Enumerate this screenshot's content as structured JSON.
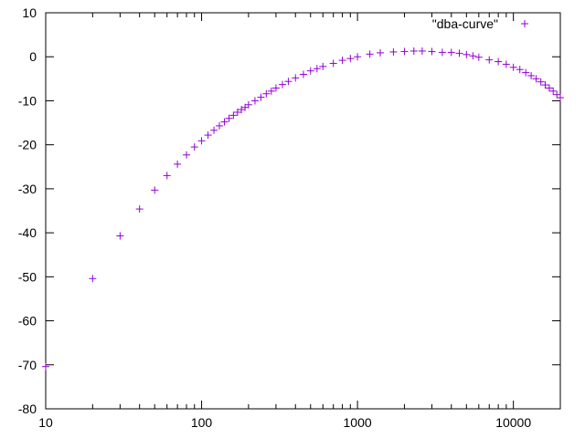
{
  "chart_data": {
    "type": "scatter",
    "title": "",
    "xlabel": "",
    "ylabel": "",
    "x_scale": "log",
    "xlim": [
      10,
      20000
    ],
    "ylim": [
      -80,
      10
    ],
    "x_ticks": [
      {
        "value": 10,
        "label": "10"
      },
      {
        "value": 100,
        "label": "100"
      },
      {
        "value": 1000,
        "label": "1000"
      },
      {
        "value": 10000,
        "label": "10000"
      }
    ],
    "y_ticks": [
      {
        "value": 10,
        "label": "10"
      },
      {
        "value": 0,
        "label": "0"
      },
      {
        "value": -10,
        "label": "-10"
      },
      {
        "value": -20,
        "label": "-20"
      },
      {
        "value": -30,
        "label": "-30"
      },
      {
        "value": -40,
        "label": "-40"
      },
      {
        "value": -50,
        "label": "-50"
      },
      {
        "value": -60,
        "label": "-60"
      },
      {
        "value": -70,
        "label": "-70"
      },
      {
        "value": -80,
        "label": "-80"
      }
    ],
    "grid": false,
    "legend_position": "top-right",
    "series": [
      {
        "name": "\"dba-curve\"",
        "color": "#9400d3",
        "marker": "plus",
        "x": [
          10,
          20,
          30,
          40,
          50,
          60,
          70,
          80,
          90,
          100,
          110,
          120,
          130,
          140,
          150,
          160,
          170,
          180,
          190,
          200,
          220,
          240,
          260,
          280,
          300,
          330,
          360,
          400,
          450,
          500,
          550,
          600,
          700,
          800,
          900,
          1000,
          1200,
          1400,
          1700,
          2000,
          2300,
          2600,
          3000,
          3500,
          4000,
          4500,
          5000,
          5500,
          6000,
          7000,
          8000,
          9000,
          10000,
          11000,
          12000,
          13000,
          14000,
          15000,
          16000,
          17000,
          18000,
          19000,
          20000
        ],
        "y": [
          -70.4,
          -50.4,
          -40.7,
          -34.6,
          -30.3,
          -27.0,
          -24.4,
          -22.3,
          -20.5,
          -19.1,
          -17.8,
          -16.7,
          -15.7,
          -14.8,
          -14.0,
          -13.3,
          -12.6,
          -12.0,
          -11.5,
          -10.9,
          -10.0,
          -9.2,
          -8.4,
          -7.8,
          -7.1,
          -6.3,
          -5.6,
          -4.8,
          -4.0,
          -3.2,
          -2.7,
          -2.2,
          -1.5,
          -0.8,
          -0.4,
          0.0,
          0.6,
          0.9,
          1.1,
          1.2,
          1.3,
          1.3,
          1.2,
          1.0,
          1.0,
          0.8,
          0.5,
          0.2,
          -0.1,
          -0.7,
          -1.1,
          -1.7,
          -2.4,
          -2.9,
          -3.6,
          -4.3,
          -5.0,
          -5.7,
          -6.4,
          -7.1,
          -7.8,
          -8.6,
          -9.3
        ]
      }
    ]
  }
}
